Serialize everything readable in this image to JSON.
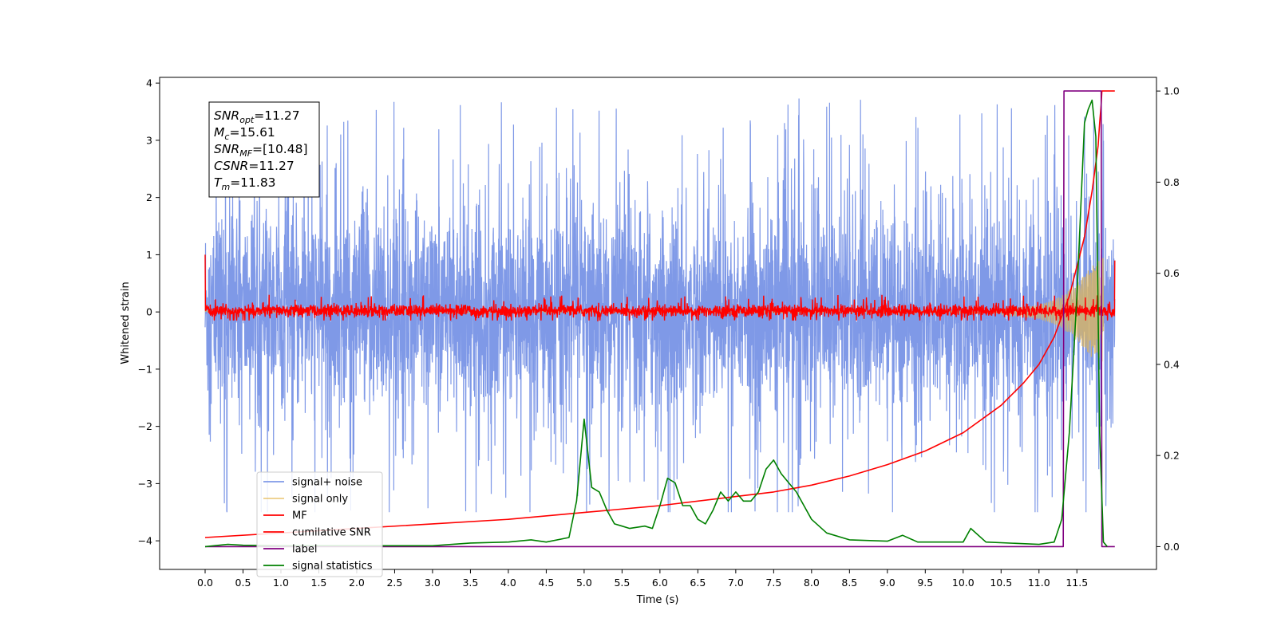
{
  "chart_data": {
    "type": "line",
    "xlabel": "Time (s)",
    "ylabel_left": "Whitened strain",
    "ylabel_right": "",
    "xlim": [
      -0.6,
      12.55
    ],
    "ylim_left": [
      -4.5,
      4.1
    ],
    "ylim_right": [
      -0.05,
      1.03
    ],
    "x_ticks": [
      "0.0",
      "0.5",
      "1.0",
      "1.5",
      "2.0",
      "2.5",
      "3.0",
      "3.5",
      "4.0",
      "4.5",
      "5.0",
      "5.5",
      "6.0",
      "6.5",
      "7.0",
      "7.5",
      "8.0",
      "8.5",
      "9.0",
      "9.5",
      "10.0",
      "10.5",
      "11.0",
      "11.5"
    ],
    "y_ticks_left": [
      "−4",
      "−3",
      "−2",
      "−1",
      "0",
      "1",
      "2",
      "3",
      "4"
    ],
    "y_ticks_right": [
      "0.0",
      "0.2",
      "0.4",
      "0.6",
      "0.8",
      "1.0"
    ],
    "grid": false,
    "legend_position": "lower-left",
    "legend": [
      "signal+ noise",
      "signal only",
      "MF",
      "cumilative SNR",
      "label",
      "signal statistics"
    ],
    "annotation_lines": [
      {
        "main": "SNR",
        "sub": "opt",
        "value": "=11.27"
      },
      {
        "main": "M",
        "sub": "c",
        "value": "=15.61"
      },
      {
        "main": "SNR",
        "sub": "MF",
        "value": "=[10.48]"
      },
      {
        "main": "CSNR",
        "sub": "",
        "value": "=11.27"
      },
      {
        "main": "T",
        "sub": "m",
        "value": "=11.83"
      }
    ],
    "series": [
      {
        "name": "signal+ noise",
        "axis": "left",
        "color": "#7893e6",
        "style": "noise",
        "x_range": [
          0.0,
          12.0
        ],
        "typical_band": [
          -1.9,
          1.9
        ],
        "extreme_range": [
          -3.5,
          3.75
        ]
      },
      {
        "name": "signal only",
        "axis": "left",
        "color": "#e6b850",
        "style": "chirp",
        "x_range": [
          0.0,
          11.85
        ],
        "envelope": {
          "x": [
            10.5,
            11.0,
            11.3,
            11.5,
            11.7,
            11.85
          ],
          "amplitude": [
            0.05,
            0.12,
            0.28,
            0.5,
            0.8,
            0.95
          ]
        }
      },
      {
        "name": "MF",
        "axis": "left",
        "color": "#ff0000",
        "style": "noise",
        "x_range": [
          0.0,
          12.0
        ],
        "typical_band": [
          -0.15,
          0.2
        ],
        "start_spike": 1.0,
        "end_value": 0.9
      },
      {
        "name": "cumilative SNR",
        "axis": "right",
        "color": "#ff0000",
        "x": [
          0.0,
          1.0,
          2.0,
          3.0,
          4.0,
          5.0,
          6.0,
          7.0,
          7.5,
          8.0,
          8.5,
          9.0,
          9.5,
          10.0,
          10.5,
          10.8,
          11.0,
          11.2,
          11.4,
          11.6,
          11.7,
          11.78,
          11.8,
          11.82,
          11.83,
          12.0
        ],
        "y": [
          0.02,
          0.03,
          0.04,
          0.05,
          0.06,
          0.075,
          0.09,
          0.11,
          0.12,
          0.135,
          0.155,
          0.18,
          0.21,
          0.25,
          0.31,
          0.36,
          0.4,
          0.46,
          0.55,
          0.68,
          0.78,
          0.88,
          0.93,
          0.97,
          1.0,
          1.0
        ]
      },
      {
        "name": "label",
        "axis": "right",
        "color": "#800080",
        "x": [
          0.0,
          11.32,
          11.33,
          11.82,
          11.83,
          12.0
        ],
        "y": [
          0.0,
          0.0,
          1.0,
          1.0,
          0.0,
          0.0
        ]
      },
      {
        "name": "signal statistics",
        "axis": "right",
        "color": "#008000",
        "x": [
          0.0,
          0.3,
          0.5,
          1.0,
          2.0,
          3.0,
          3.5,
          4.0,
          4.3,
          4.5,
          4.8,
          4.9,
          5.0,
          5.1,
          5.2,
          5.3,
          5.4,
          5.5,
          5.6,
          5.8,
          5.9,
          6.0,
          6.1,
          6.2,
          6.3,
          6.4,
          6.5,
          6.6,
          6.7,
          6.8,
          6.9,
          7.0,
          7.1,
          7.2,
          7.3,
          7.4,
          7.5,
          7.6,
          7.7,
          7.8,
          8.0,
          8.2,
          8.5,
          9.0,
          9.2,
          9.4,
          10.0,
          10.1,
          10.3,
          11.0,
          11.2,
          11.3,
          11.4,
          11.5,
          11.6,
          11.65,
          11.7,
          11.75,
          11.8,
          11.85,
          11.9
        ],
        "y": [
          0.0,
          0.005,
          0.003,
          0.002,
          0.002,
          0.002,
          0.008,
          0.01,
          0.015,
          0.01,
          0.02,
          0.1,
          0.28,
          0.13,
          0.12,
          0.08,
          0.05,
          0.045,
          0.04,
          0.045,
          0.04,
          0.09,
          0.15,
          0.14,
          0.09,
          0.09,
          0.06,
          0.05,
          0.08,
          0.12,
          0.1,
          0.12,
          0.1,
          0.1,
          0.12,
          0.17,
          0.19,
          0.16,
          0.14,
          0.12,
          0.06,
          0.03,
          0.015,
          0.012,
          0.025,
          0.01,
          0.01,
          0.04,
          0.01,
          0.005,
          0.01,
          0.06,
          0.25,
          0.55,
          0.93,
          0.96,
          0.98,
          0.9,
          0.25,
          0.01,
          0.0
        ]
      }
    ]
  }
}
